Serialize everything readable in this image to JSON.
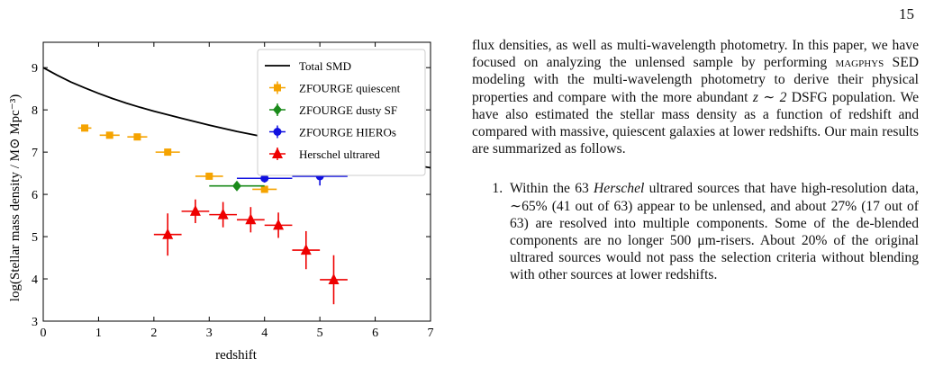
{
  "page": {
    "number": "15"
  },
  "body_text": {
    "paragraph": {
      "part1": "flux densities, as well as multi-wavelength photometry. In this paper, we have focused on analyzing the unlensed sample by performing ",
      "magphys": "magphys",
      "part2": " SED modeling with the multi-wavelength photometry to derive their physical properties and compare with the more abundant ",
      "math": "z ∼ 2",
      "part3": " DSFG population. We have also estimated the stellar mass density as a function of redshift and compared with massive, quiescent galaxies at lower redshifts. Our main results are summarized as follows."
    },
    "list_item_1": {
      "part1": "Within the 63 ",
      "herschel": "Herschel",
      "part2": " ultrared sources that have high-resolution data, ∼65% (41 out of 63) appear to be unlensed, and about 27% (17 out of 63) are resolved into multiple components. Some of the de-blended components are no longer 500 μm-risers. About 20% of the original ultrared sources would not pass the selection criteria without blending with other sources at lower redshifts."
    }
  },
  "chart_data": {
    "type": "scatter",
    "xlabel": "redshift",
    "ylabel": "log(Stellar mass density / M⊙ Mpc⁻³)",
    "xlim": [
      0,
      7
    ],
    "ylim": [
      3,
      9.6
    ],
    "xticks": [
      0,
      1,
      2,
      3,
      4,
      5,
      6,
      7
    ],
    "yticks": [
      3,
      4,
      5,
      6,
      7,
      8,
      9
    ],
    "legend_position": "top-right",
    "grid": false,
    "curve": {
      "name": "Total SMD",
      "color": "#000000",
      "x": [
        0,
        0.25,
        0.5,
        0.75,
        1.0,
        1.25,
        1.5,
        1.75,
        2.0,
        2.5,
        3.0,
        3.5,
        4.0,
        4.5,
        5.0,
        5.5,
        6.0,
        6.5,
        7.0
      ],
      "y": [
        9.0,
        8.82,
        8.66,
        8.52,
        8.39,
        8.27,
        8.16,
        8.06,
        7.97,
        7.8,
        7.64,
        7.49,
        7.36,
        7.23,
        7.1,
        6.97,
        6.85,
        6.74,
        6.63
      ]
    },
    "series": [
      {
        "name": "ZFOURGE quiescent",
        "color": "#f5a300",
        "marker": "square",
        "x": [
          0.75,
          1.2,
          1.7,
          2.25,
          3.0,
          4.0
        ],
        "y": [
          7.57,
          7.4,
          7.36,
          7.0,
          6.43,
          6.12
        ],
        "xerr": [
          0.12,
          0.18,
          0.18,
          0.22,
          0.25,
          0.22
        ],
        "yerr": [
          0.05,
          0.05,
          0.05,
          0.05,
          0.06,
          0.08
        ]
      },
      {
        "name": "ZFOURGE dusty SF",
        "color": "#1a8a1a",
        "marker": "diamond",
        "x": [
          3.5
        ],
        "y": [
          6.2
        ],
        "xerr": [
          0.5
        ],
        "yerr": [
          0.06
        ]
      },
      {
        "name": "ZFOURGE HIEROs",
        "color": "#1010e0",
        "marker": "circle",
        "x": [
          4.0,
          5.0
        ],
        "y": [
          6.38,
          6.43
        ],
        "xerr": [
          0.5,
          0.5
        ],
        "yerr": [
          0.1,
          0.22
        ]
      },
      {
        "name": "Herschel ultrared",
        "color": "#ee0000",
        "marker": "triangle",
        "x": [
          2.25,
          2.75,
          3.25,
          3.75,
          4.25,
          4.75,
          5.25
        ],
        "y": [
          5.05,
          5.6,
          5.52,
          5.4,
          5.27,
          4.68,
          3.98
        ],
        "xerr": [
          0.25,
          0.25,
          0.25,
          0.25,
          0.25,
          0.25,
          0.25
        ],
        "yerr": [
          0.5,
          0.28,
          0.3,
          0.3,
          0.3,
          0.45,
          0.58
        ]
      }
    ]
  }
}
